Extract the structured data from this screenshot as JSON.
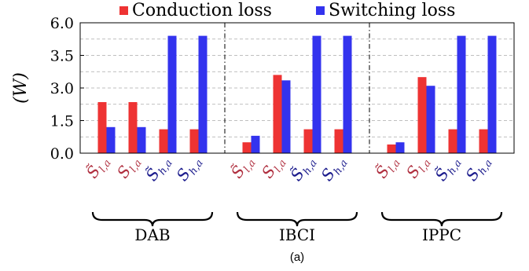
{
  "chart_data": {
    "type": "bar",
    "ylabel": "(W)",
    "yticks": [
      "0.0",
      "1.5",
      "3.0",
      "3.5",
      "6.0"
    ],
    "ylim": [
      0,
      6
    ],
    "grid": "horizontal-dashed",
    "legend_position": "top",
    "groups": [
      {
        "label": "DAB",
        "categories": [
          {
            "main": "S̃",
            "sub": "l,a",
            "color": "#b03040"
          },
          {
            "main": "S",
            "sub": "l,a",
            "color": "#b03040"
          },
          {
            "main": "S̃",
            "sub": "h,a",
            "color": "#1a1a8c"
          },
          {
            "main": "S",
            "sub": "h,a",
            "color": "#1a1a8c"
          }
        ]
      },
      {
        "label": "IBCI",
        "categories": [
          {
            "main": "S̃",
            "sub": "l,a",
            "color": "#b03040"
          },
          {
            "main": "S",
            "sub": "l,a",
            "color": "#b03040"
          },
          {
            "main": "S̃",
            "sub": "h,a",
            "color": "#1a1a8c"
          },
          {
            "main": "S",
            "sub": "h,a",
            "color": "#1a1a8c"
          }
        ]
      },
      {
        "label": "IPPC",
        "categories": [
          {
            "main": "S̃",
            "sub": "l,a",
            "color": "#b03040"
          },
          {
            "main": "S",
            "sub": "l,a",
            "color": "#b03040"
          },
          {
            "main": "S̃",
            "sub": "h,a",
            "color": "#1a1a8c"
          },
          {
            "main": "S",
            "sub": "h,a",
            "color": "#1a1a8c"
          }
        ]
      }
    ],
    "series": [
      {
        "name": "Conduction loss",
        "color": "#ee3333",
        "values": [
          2.35,
          2.35,
          1.1,
          1.1,
          0.5,
          3.6,
          1.1,
          1.1,
          0.4,
          3.5,
          1.1,
          1.1
        ]
      },
      {
        "name": "Switching loss",
        "color": "#3333ee",
        "values": [
          1.2,
          1.2,
          5.4,
          5.4,
          0.8,
          3.35,
          5.4,
          5.4,
          0.5,
          3.1,
          5.4,
          5.4
        ]
      }
    ],
    "caption": "(a)"
  }
}
